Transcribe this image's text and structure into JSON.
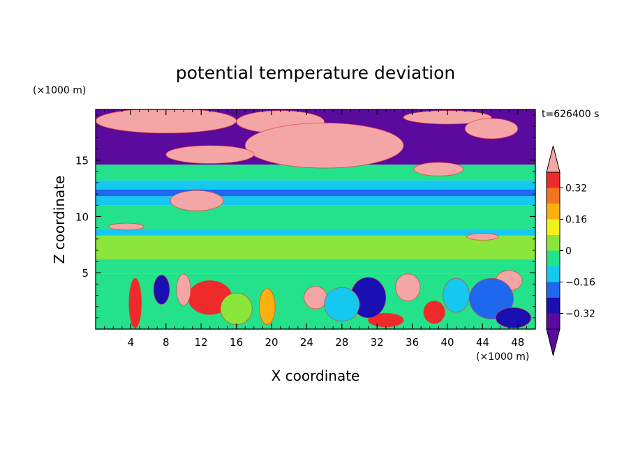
{
  "chart_data": {
    "type": "heatmap",
    "title": "potential temperature deviation",
    "xlabel": "X coordinate",
    "ylabel": "Z coordinate",
    "x_unit": "(×1000 m)",
    "y_unit": "(×1000 m)",
    "time_label": "t=626400 s",
    "xlim": [
      0,
      50
    ],
    "ylim": [
      0,
      19.5
    ],
    "x_ticks": [
      4,
      8,
      12,
      16,
      20,
      24,
      28,
      32,
      36,
      40,
      44,
      48
    ],
    "y_ticks": [
      5,
      10,
      15
    ],
    "colorbar": {
      "ticks": [
        "0.32",
        "0.16",
        "0",
        "−0.16",
        "−0.32"
      ],
      "tick_values": [
        0.32,
        0.16,
        0,
        -0.16,
        -0.32
      ],
      "levels": [
        -0.4,
        -0.32,
        -0.24,
        -0.16,
        -0.08,
        0,
        0.08,
        0.16,
        0.24,
        0.32,
        0.4
      ],
      "colors_low_to_high": [
        "#5b0a9e",
        "#1a0fb0",
        "#1e68f0",
        "#14c8ef",
        "#23e28a",
        "#8ae63a",
        "#f0f21a",
        "#fcb00e",
        "#f3741f",
        "#ee2a2a",
        "#f4a6a6"
      ],
      "extend": "both"
    },
    "bands": [
      {
        "z_top": 19.5,
        "z_bottom": 14.6,
        "color": "#5b0a9e"
      },
      {
        "z_top": 14.6,
        "z_bottom": 13.2,
        "color": "#23e28a"
      },
      {
        "z_top": 13.2,
        "z_bottom": 12.4,
        "color": "#14c8ef"
      },
      {
        "z_top": 12.4,
        "z_bottom": 11.8,
        "color": "#1e68f0"
      },
      {
        "z_top": 11.8,
        "z_bottom": 11.0,
        "color": "#14c8ef"
      },
      {
        "z_top": 11.0,
        "z_bottom": 8.9,
        "color": "#23e28a"
      },
      {
        "z_top": 8.9,
        "z_bottom": 8.3,
        "color": "#14c8ef"
      },
      {
        "z_top": 8.3,
        "z_bottom": 6.2,
        "color": "#8ae63a"
      },
      {
        "z_top": 6.2,
        "z_bottom": 4.9,
        "color": "#23e28a"
      },
      {
        "z_top": 4.9,
        "z_bottom": 0.0,
        "color": "#23e28a"
      }
    ],
    "blobs": [
      {
        "x": 8,
        "z": 18.5,
        "rx": 8,
        "rz": 1.1,
        "color": "#f4a6a6"
      },
      {
        "x": 21,
        "z": 18.4,
        "rx": 5,
        "rz": 1.0,
        "color": "#f4a6a6"
      },
      {
        "x": 26,
        "z": 16.3,
        "rx": 9,
        "rz": 2.0,
        "color": "#f4a6a6"
      },
      {
        "x": 13,
        "z": 15.5,
        "rx": 5,
        "rz": 0.8,
        "color": "#f4a6a6"
      },
      {
        "x": 40,
        "z": 18.8,
        "rx": 5,
        "rz": 0.6,
        "color": "#f4a6a6"
      },
      {
        "x": 45,
        "z": 17.8,
        "rx": 3,
        "rz": 0.9,
        "color": "#f4a6a6"
      },
      {
        "x": 39,
        "z": 14.2,
        "rx": 2.8,
        "rz": 0.6,
        "color": "#f4a6a6"
      },
      {
        "x": 11.5,
        "z": 11.4,
        "rx": 3,
        "rz": 0.9,
        "color": "#f4a6a6"
      },
      {
        "x": 3.5,
        "z": 9.1,
        "rx": 2,
        "rz": 0.3,
        "color": "#f4a6a6"
      },
      {
        "x": 44,
        "z": 8.2,
        "rx": 1.8,
        "rz": 0.3,
        "color": "#f4a6a6"
      },
      {
        "x": 4.5,
        "z": 2.3,
        "rx": 0.7,
        "rz": 2.2,
        "color": "#ee2a2a"
      },
      {
        "x": 13,
        "z": 2.8,
        "rx": 2.5,
        "rz": 1.5,
        "color": "#ee2a2a"
      },
      {
        "x": 10,
        "z": 3.5,
        "rx": 0.8,
        "rz": 1.4,
        "color": "#f4a6a6"
      },
      {
        "x": 25,
        "z": 2.8,
        "rx": 1.3,
        "rz": 1.0,
        "color": "#f4a6a6"
      },
      {
        "x": 35.5,
        "z": 3.7,
        "rx": 1.4,
        "rz": 1.2,
        "color": "#f4a6a6"
      },
      {
        "x": 19.5,
        "z": 2.0,
        "rx": 0.9,
        "rz": 1.6,
        "color": "#fcb00e"
      },
      {
        "x": 38.5,
        "z": 1.5,
        "rx": 1.2,
        "rz": 1.0,
        "color": "#ee2a2a"
      },
      {
        "x": 33,
        "z": 0.8,
        "rx": 2,
        "rz": 0.6,
        "color": "#ee2a2a"
      },
      {
        "x": 47,
        "z": 4.3,
        "rx": 1.5,
        "rz": 0.9,
        "color": "#f4a6a6"
      },
      {
        "x": 45,
        "z": 2.7,
        "rx": 2.5,
        "rz": 1.8,
        "color": "#1e68f0"
      },
      {
        "x": 47.5,
        "z": 1.0,
        "rx": 2,
        "rz": 0.9,
        "color": "#1a0fb0"
      },
      {
        "x": 31,
        "z": 2.8,
        "rx": 2,
        "rz": 1.8,
        "color": "#1a0fb0"
      },
      {
        "x": 7.5,
        "z": 3.5,
        "rx": 0.9,
        "rz": 1.3,
        "color": "#1a0fb0"
      },
      {
        "x": 16,
        "z": 1.8,
        "rx": 1.8,
        "rz": 1.4,
        "color": "#8ae63a"
      },
      {
        "x": 28,
        "z": 2.2,
        "rx": 2,
        "rz": 1.5,
        "color": "#14c8ef"
      },
      {
        "x": 41,
        "z": 3.0,
        "rx": 1.5,
        "rz": 1.5,
        "color": "#14c8ef"
      }
    ]
  }
}
